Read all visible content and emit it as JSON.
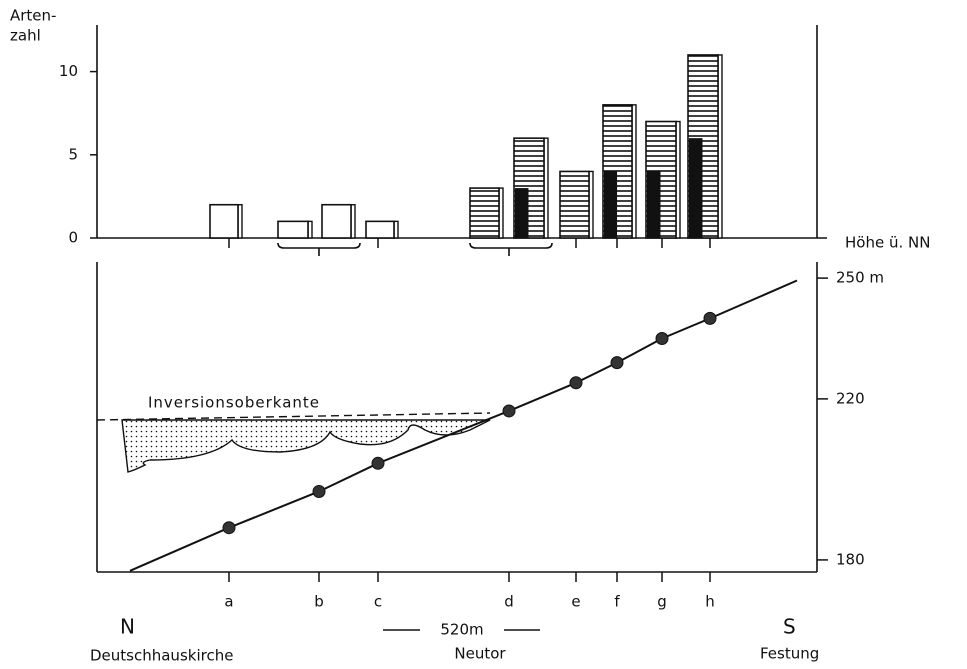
{
  "chart_data": [
    {
      "type": "bar",
      "y_label": [
        "Arten-",
        "zahl"
      ],
      "values": [
        2,
        1,
        2,
        1,
        3,
        6,
        4,
        8,
        7,
        11
      ],
      "dark_values": [
        0,
        0,
        0,
        0,
        0,
        3,
        0,
        4,
        4,
        6
      ],
      "hatched": [
        false,
        false,
        false,
        false,
        true,
        true,
        true,
        true,
        true,
        true
      ],
      "ylim": [
        0,
        12.8
      ],
      "yticks": [
        0,
        5,
        10
      ]
    },
    {
      "type": "line",
      "y_label": "Höhe ü. NN",
      "categories": [
        "a",
        "b",
        "c",
        "d",
        "e",
        "f",
        "g",
        "h"
      ],
      "values": [
        188,
        197,
        204,
        217,
        224,
        229,
        235,
        240
      ],
      "ylim": [
        177,
        254
      ],
      "yticks": [
        {
          "value": 250,
          "label": "250 m"
        },
        220,
        180
      ],
      "annotations": {
        "inversion": "Inversionsoberkante",
        "north": "N",
        "south": "S",
        "north_place": "Deutschhauskirche",
        "middle_place": "Neutor",
        "south_place": "Festung",
        "scale": "520m"
      }
    }
  ]
}
